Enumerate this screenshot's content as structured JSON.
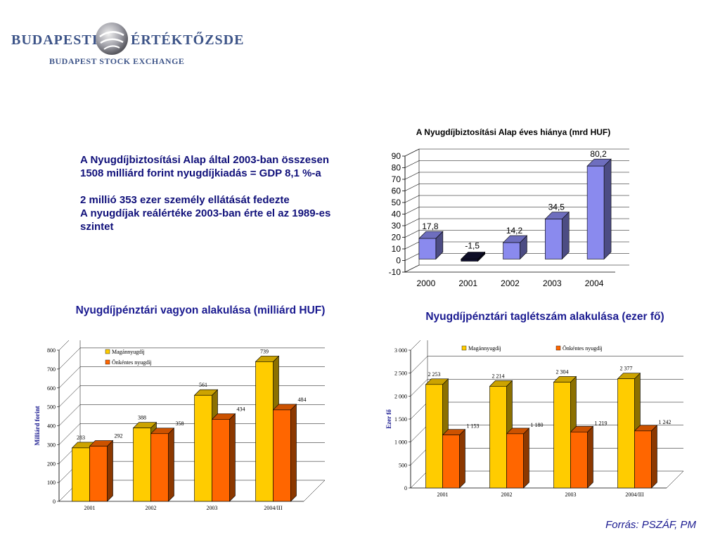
{
  "logo": {
    "left_word": "BUDAPESTI",
    "right_word": "ÉRTÉKTŐZSDE",
    "subtitle": "BUDAPEST STOCK EXCHANGE"
  },
  "intro": {
    "paragraph1": "A Nyugdíjbiztosítási Alap által 2003-ban összesen 1508 milliárd forint nyugdíjkiadás = GDP 8,1 %-a",
    "paragraph2_line1": "2 millió 353 ezer személy ellátását fedezte",
    "paragraph2_line2": "A nyugdíjak reálértéke 2003-ban érte el az 1989-es szintet"
  },
  "source": "Forrás: PSZÁF, PM",
  "colors": {
    "text_blue": "#1a1a90",
    "bar_lavender": "#8a8aee",
    "bar_yellow": "#ffcc00",
    "bar_orange": "#ff6600"
  },
  "chart_data": [
    {
      "type": "bar",
      "title": "A Nyugdíjbiztosítási Alap éves hiánya (mrd HUF)",
      "categories": [
        "2000",
        "2001",
        "2002",
        "2003",
        "2004"
      ],
      "values": [
        17.8,
        -1.5,
        14.2,
        34.5,
        80.2
      ],
      "value_labels": [
        "17,8",
        "-1,5",
        "14,2",
        "34,5",
        "80,2"
      ],
      "ylim": [
        -10,
        90
      ],
      "yticks": [
        -10,
        0,
        10,
        20,
        30,
        40,
        50,
        60,
        70,
        80,
        90
      ],
      "grid": true,
      "legend": "none"
    },
    {
      "type": "bar",
      "title": "Nyugdíjpénztári vagyon alakulása (milliárd HUF)",
      "ylabel": "Milliárd forint",
      "categories": [
        "2001",
        "2002",
        "2003",
        "2004/III"
      ],
      "series": [
        {
          "name": "Magánnyugdíj",
          "values": [
            283,
            388,
            561,
            739
          ],
          "labels": [
            "283",
            "388",
            "561",
            "739"
          ]
        },
        {
          "name": "Önkéntes nyugdíj",
          "values": [
            292,
            358,
            434,
            484
          ],
          "labels": [
            "292",
            "358",
            "434",
            "484"
          ]
        }
      ],
      "ylim": [
        0,
        800
      ],
      "yticks": [
        0,
        100,
        200,
        300,
        400,
        500,
        600,
        700,
        800
      ],
      "grid": true,
      "legend": "top-left"
    },
    {
      "type": "bar",
      "title": "Nyugdíjpénztári taglétszám alakulása (ezer fő)",
      "ylabel": "Ezer fő",
      "categories": [
        "2001",
        "2002",
        "2003",
        "2004/III"
      ],
      "series": [
        {
          "name": "Magánnyugdíj",
          "values": [
            2253,
            2214,
            2304,
            2377
          ],
          "labels": [
            "2 253",
            "2 214",
            "2 304",
            "2 377"
          ]
        },
        {
          "name": "Önkéntes nyugdíj",
          "values": [
            1153,
            1180,
            1219,
            1242
          ],
          "labels": [
            "1 153",
            "1 180",
            "1 219",
            "1 242"
          ]
        }
      ],
      "ylim": [
        0,
        3000
      ],
      "yticks": [
        0,
        500,
        1000,
        1500,
        2000,
        2500,
        3000
      ],
      "ytick_labels": [
        "0",
        "500",
        "1 000",
        "1 500",
        "2 000",
        "2 500",
        "3 000"
      ],
      "grid": true,
      "legend": "top"
    }
  ]
}
